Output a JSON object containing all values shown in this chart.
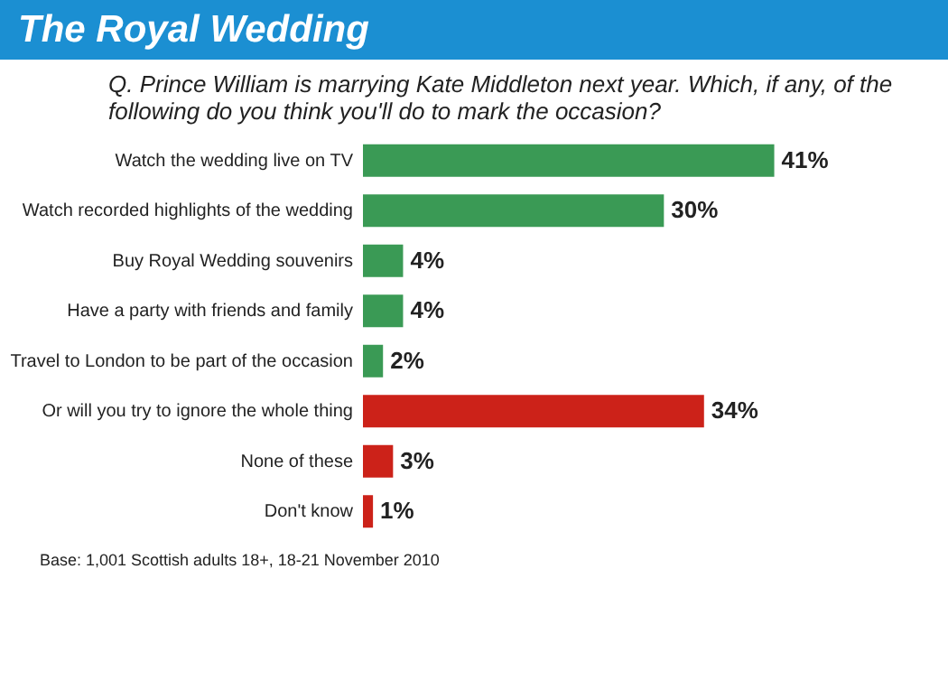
{
  "chart_data": {
    "type": "bar",
    "orientation": "horizontal",
    "title": "The Royal Wedding",
    "subtitle": "Q. Prince William is marrying Kate Middleton next year. Which, if any, of the following do you think you'll do to mark the occasion?",
    "categories": [
      "Watch the wedding live on TV",
      "Watch recorded highlights of the wedding",
      "Buy Royal Wedding souvenirs",
      "Have a party with friends and family",
      "Travel to London to be part of the occasion",
      "Or will you try to ignore the whole thing",
      "None of these",
      "Don't know"
    ],
    "values": [
      41,
      30,
      4,
      4,
      2,
      34,
      3,
      1
    ],
    "colors": [
      "#3a9a55",
      "#3a9a55",
      "#3a9a55",
      "#3a9a55",
      "#3a9a55",
      "#cc2219",
      "#cc2219",
      "#cc2219"
    ],
    "value_labels": [
      "41%",
      "30%",
      "4%",
      "4%",
      "2%",
      "34%",
      "3%",
      "1%"
    ],
    "annotations": [
      "Base: 1,001 Scottish adults 18+, 18-21 November 2010"
    ]
  }
}
